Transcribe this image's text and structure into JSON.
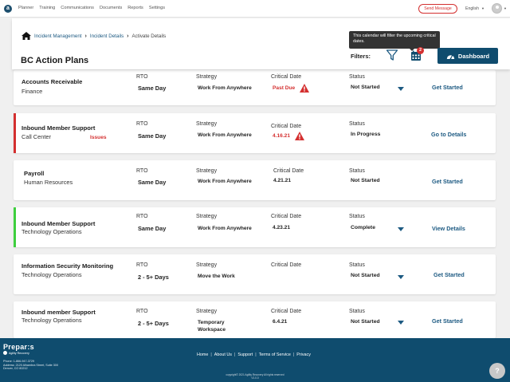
{
  "nav": {
    "logo_letter": "a",
    "links": [
      "Planner",
      "Training",
      "Communications",
      "Documents",
      "Reports",
      "Settings"
    ],
    "send_message": "Send Message",
    "language": "English"
  },
  "header": {
    "breadcrumbs": [
      "Incident Management",
      "Incident Details",
      "Activate Details"
    ],
    "title": "BC Action Plans",
    "filters_label": "Filters:",
    "calendar_badge": "2",
    "tooltip": "This calendar will filter the upcoming critical dates.",
    "dashboard_label": "Dashboard"
  },
  "labels": {
    "rto": "RTO",
    "strategy": "Strategy",
    "critical_date": "Critical Date",
    "status": "Status"
  },
  "cards": [
    {
      "title": "Accounts Receivable",
      "dept": "Finance",
      "issue": "",
      "rto": "Same Day",
      "strategy": "Work From Anywhere",
      "critical_date": "Past Due",
      "date_alert": true,
      "status": "Not Started",
      "has_dropdown": true,
      "action": "Get Started",
      "accent": ""
    },
    {
      "title": "Inbound Member Support",
      "dept": "Call Center",
      "issue": "Issues",
      "rto": "Same Day",
      "strategy": "Work From Anywhere",
      "critical_date": "4.16.21",
      "date_alert": true,
      "status": "In Progress",
      "has_dropdown": false,
      "action": "Go to Details",
      "accent": "#d43030"
    },
    {
      "title": "Payroll",
      "dept": "Human Resources",
      "issue": "",
      "rto": "Same Day",
      "strategy": "Work From Anywhere",
      "critical_date": "4.21.21",
      "date_alert": false,
      "status": "Not Started",
      "has_dropdown": false,
      "action": "Get Started",
      "accent": ""
    },
    {
      "title": "Inbound Member Support",
      "dept": "Technology Operations",
      "issue": "",
      "rto": "Same Day",
      "strategy": "Work From Anywhere",
      "critical_date": "4.23.21",
      "date_alert": false,
      "status": "Complete",
      "has_dropdown": true,
      "action": "View Details",
      "accent": "#3ecf3e"
    },
    {
      "title": "Information Security Monitoring",
      "dept": "Technology Operations",
      "issue": "",
      "rto": "2 - 5+ Days",
      "strategy": "Move the Work",
      "critical_date": "",
      "date_alert": false,
      "status": "Not Started",
      "has_dropdown": true,
      "action": "Get Started",
      "accent": ""
    },
    {
      "title": "Inbound member Support",
      "dept": "Technology Operations",
      "issue": "",
      "rto": "2 - 5+ Days",
      "strategy": "Temporary Workspace",
      "critical_date": "6.4.21",
      "date_alert": false,
      "status": "Not Started",
      "has_dropdown": true,
      "action": "Get Started",
      "accent": ""
    }
  ],
  "footer": {
    "brand": "Prepar:s",
    "sub": "Agility Recovery",
    "phone": "Phone: 1-866-947-3729",
    "address": "Address: 2120 Alhambra Street, Suite 300",
    "city": "Denver, CO 80212",
    "links": [
      "Home",
      "About Us",
      "Support",
      "Terms of Service",
      "Privacy"
    ],
    "copyright": "copyright© 2021 Agility Recovery All rights reserved",
    "version": "V1.0.0",
    "help": "?"
  },
  "colors": {
    "primary": "#0f4c6e",
    "link": "#1d5a82",
    "alert": "#d43030",
    "success": "#3ecf3e"
  }
}
